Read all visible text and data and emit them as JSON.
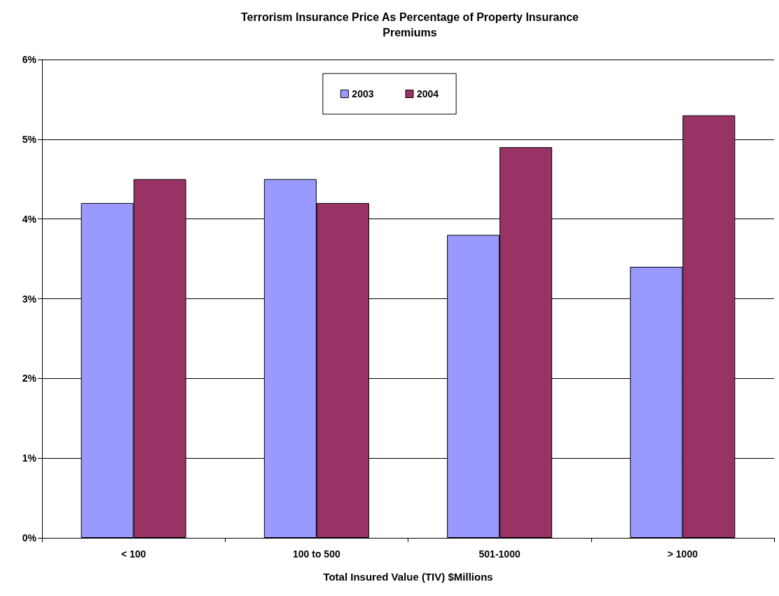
{
  "chart_data": {
    "type": "bar",
    "title": "Terrorism Insurance Price As Percentage of Property Insurance\nPremiums",
    "xlabel": "Total Insured Value (TIV) $Millions",
    "categories": [
      "< 100",
      "100 to 500",
      "501-1000",
      "> 1000"
    ],
    "series": [
      {
        "name": "2003",
        "color": "#9999ff",
        "values": [
          4.2,
          4.5,
          3.8,
          3.4
        ]
      },
      {
        "name": "2004",
        "color": "#993366",
        "values": [
          4.5,
          4.2,
          4.9,
          5.3
        ]
      }
    ],
    "ylim": [
      0,
      6
    ],
    "yticks": [
      {
        "value": 0,
        "label": "0%"
      },
      {
        "value": 1,
        "label": "1%"
      },
      {
        "value": 2,
        "label": "2%"
      },
      {
        "value": 3,
        "label": "3%"
      },
      {
        "value": 4,
        "label": "4%"
      },
      {
        "value": 5,
        "label": "5%"
      },
      {
        "value": 6,
        "label": "6%"
      }
    ],
    "grid": "y",
    "legend": "top"
  }
}
